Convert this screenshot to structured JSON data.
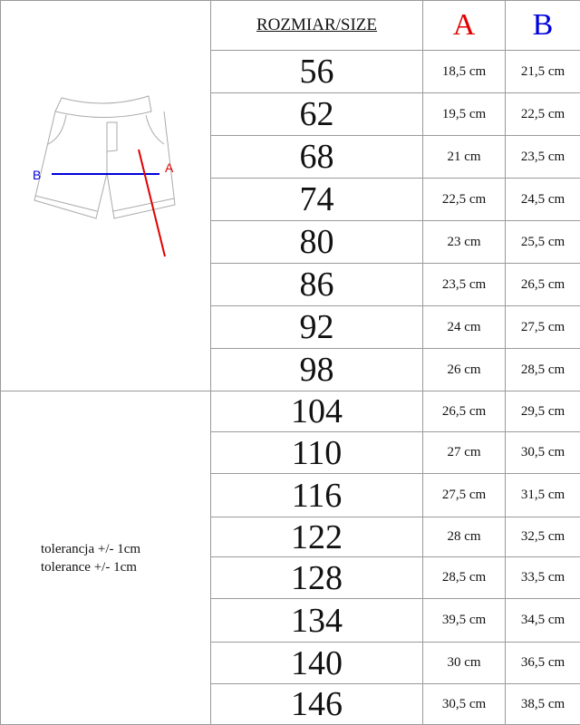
{
  "header": {
    "size_label": "ROZMIAR/SIZE",
    "a_label": "A",
    "b_label": "B"
  },
  "diagram": {
    "label_a": "A",
    "label_b": "B",
    "colors": {
      "a": "#e00000",
      "b": "#0000dd"
    }
  },
  "tolerance": [
    "tolerancja +/- 1cm",
    "tolerance +/- 1cm"
  ],
  "rows": [
    {
      "size": "56",
      "a": "18,5 cm",
      "b": "21,5 cm"
    },
    {
      "size": "62",
      "a": "19,5 cm",
      "b": "22,5 cm"
    },
    {
      "size": "68",
      "a": "21 cm",
      "b": "23,5 cm"
    },
    {
      "size": "74",
      "a": "22,5 cm",
      "b": "24,5 cm"
    },
    {
      "size": "80",
      "a": "23 cm",
      "b": "25,5 cm"
    },
    {
      "size": "86",
      "a": "23,5 cm",
      "b": "26,5 cm"
    },
    {
      "size": "92",
      "a": "24 cm",
      "b": "27,5 cm"
    },
    {
      "size": "98",
      "a": "26 cm",
      "b": "28,5 cm"
    },
    {
      "size": "104",
      "a": "26,5 cm",
      "b": "29,5 cm"
    },
    {
      "size": "110",
      "a": "27 cm",
      "b": "30,5 cm"
    },
    {
      "size": "116",
      "a": "27,5 cm",
      "b": "31,5 cm"
    },
    {
      "size": "122",
      "a": "28 cm",
      "b": "32,5 cm"
    },
    {
      "size": "128",
      "a": "28,5 cm",
      "b": "33,5 cm"
    },
    {
      "size": "134",
      "a": "39,5 cm",
      "b": "34,5 cm"
    },
    {
      "size": "140",
      "a": "30 cm",
      "b": "36,5 cm"
    },
    {
      "size": "146",
      "a": "30,5 cm",
      "b": "38,5 cm"
    }
  ]
}
